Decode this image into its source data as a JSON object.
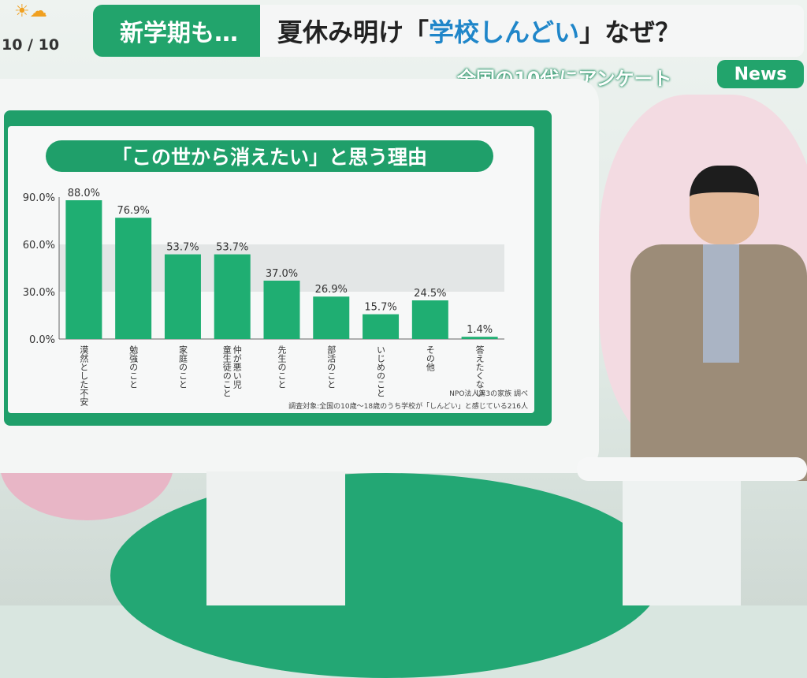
{
  "header": {
    "weather_icon": "sun-cloud-icon",
    "date": "10 / 10",
    "tag": "新学期も…",
    "headline_pre": "夏休み明け「",
    "headline_highlight": "学校しんどい",
    "headline_post": "」なぜ？",
    "subtitle": "全国の10代にアンケート",
    "news_logo": "News"
  },
  "colors": {
    "accent": "#1f9f6a",
    "bar": "#1fae72",
    "highlight": "#1f86c9"
  },
  "chart_data": {
    "type": "bar",
    "title": "「この世から消えたい」と思う理由",
    "categories": [
      "漠然とした不安",
      "勉強のこと",
      "家庭のこと",
      "仲が悪い児童生徒のこと",
      "先生のこと",
      "部活のこと",
      "いじめのこと",
      "その他",
      "答えたくない"
    ],
    "values": [
      88.0,
      76.9,
      53.7,
      53.7,
      37.0,
      26.9,
      15.7,
      24.5,
      1.4
    ],
    "value_labels": [
      "88.0%",
      "76.9%",
      "53.7%",
      "53.7%",
      "37.0%",
      "26.9%",
      "15.7%",
      "24.5%",
      "1.4%"
    ],
    "yticks": [
      "0.0%",
      "30.0%",
      "60.0%",
      "90.0%"
    ],
    "ytick_values": [
      0,
      30,
      60,
      90
    ],
    "ylim": [
      0,
      90
    ],
    "grid": "alternating bands",
    "source": "NPO法人第3の家族 調べ",
    "note": "調査対象:全国の10歳〜18歳のうち学校が「しんどい」と感じている216人"
  }
}
